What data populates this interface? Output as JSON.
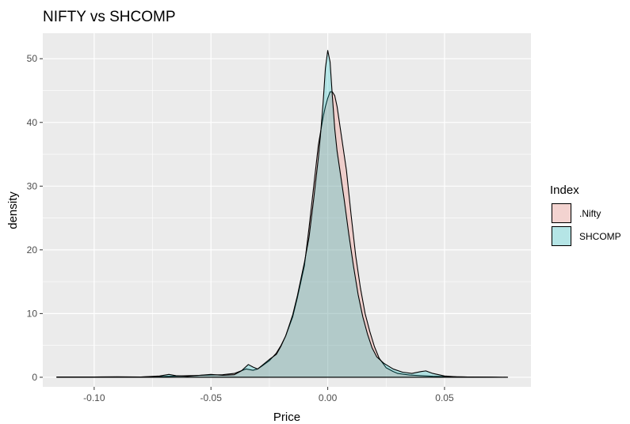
{
  "chart_data": {
    "type": "area",
    "title": "NIFTY vs SHCOMP",
    "xlabel": "Price",
    "ylabel": "density",
    "xlim": [
      -0.122,
      0.087
    ],
    "ylim": [
      -1.5,
      54
    ],
    "x_ticks": [
      -0.1,
      -0.05,
      0.0,
      0.05
    ],
    "x_tick_labels": [
      "-0.10",
      "-0.05",
      "0.00",
      "0.05"
    ],
    "y_ticks": [
      0,
      10,
      20,
      30,
      40,
      50
    ],
    "y_tick_labels": [
      "0",
      "10",
      "20",
      "30",
      "40",
      "50"
    ],
    "grid": true,
    "legend": {
      "title": "Index",
      "placement": "right"
    },
    "series": [
      {
        "name": ".Nifty",
        "fill": "#F8766D",
        "x": [
          -0.116,
          -0.1,
          -0.09,
          -0.08,
          -0.07,
          -0.06,
          -0.05,
          -0.045,
          -0.04,
          -0.035,
          -0.032,
          -0.03,
          -0.028,
          -0.025,
          -0.022,
          -0.02,
          -0.018,
          -0.015,
          -0.013,
          -0.01,
          -0.008,
          -0.006,
          -0.004,
          -0.002,
          -0.001,
          0.0,
          0.001,
          0.002,
          0.003,
          0.004,
          0.006,
          0.008,
          0.01,
          0.012,
          0.014,
          0.016,
          0.018,
          0.02,
          0.022,
          0.025,
          0.028,
          0.03,
          0.035,
          0.04,
          0.045,
          0.05,
          0.06,
          0.07,
          0.077
        ],
        "y": [
          0,
          0.02,
          0.03,
          0.05,
          0.12,
          0.25,
          0.35,
          0.4,
          0.6,
          1.3,
          1.1,
          1.3,
          1.8,
          2.6,
          3.8,
          5.0,
          6.5,
          9.5,
          12.5,
          17.5,
          23.5,
          30.0,
          36.5,
          40.8,
          42.5,
          43.8,
          44.8,
          44.8,
          44.2,
          42.5,
          37.5,
          32.5,
          25.5,
          19.0,
          14.0,
          10.0,
          7.2,
          4.8,
          3.0,
          1.5,
          0.9,
          0.6,
          0.35,
          0.25,
          0.15,
          0.1,
          0.05,
          0.02,
          0
        ]
      },
      {
        "name": "SHCOMP",
        "fill": "#00BFC4",
        "x": [
          -0.116,
          -0.1,
          -0.09,
          -0.08,
          -0.072,
          -0.068,
          -0.065,
          -0.06,
          -0.055,
          -0.05,
          -0.045,
          -0.04,
          -0.037,
          -0.034,
          -0.032,
          -0.03,
          -0.028,
          -0.025,
          -0.022,
          -0.02,
          -0.018,
          -0.015,
          -0.013,
          -0.01,
          -0.008,
          -0.006,
          -0.004,
          -0.003,
          -0.002,
          -0.001,
          0.0,
          0.001,
          0.002,
          0.003,
          0.004,
          0.005,
          0.007,
          0.009,
          0.011,
          0.013,
          0.015,
          0.017,
          0.019,
          0.021,
          0.024,
          0.028,
          0.032,
          0.036,
          0.04,
          0.042,
          0.045,
          0.05,
          0.055,
          0.06,
          0.07,
          0.077
        ],
        "y": [
          0.05,
          0.05,
          0.08,
          0.05,
          0.2,
          0.45,
          0.25,
          0.15,
          0.3,
          0.45,
          0.3,
          0.4,
          1.0,
          2.0,
          1.6,
          1.3,
          1.9,
          2.8,
          3.6,
          4.9,
          6.5,
          9.8,
          12.8,
          18.0,
          22.0,
          28.0,
          34.5,
          38.5,
          43.0,
          48.5,
          51.3,
          49.5,
          44.0,
          39.0,
          35.5,
          33.0,
          28.0,
          22.5,
          17.5,
          13.0,
          9.5,
          6.8,
          4.6,
          3.2,
          2.2,
          1.3,
          0.8,
          0.6,
          0.9,
          1.0,
          0.6,
          0.2,
          0.08,
          0.05,
          0.03,
          0
        ]
      }
    ]
  }
}
